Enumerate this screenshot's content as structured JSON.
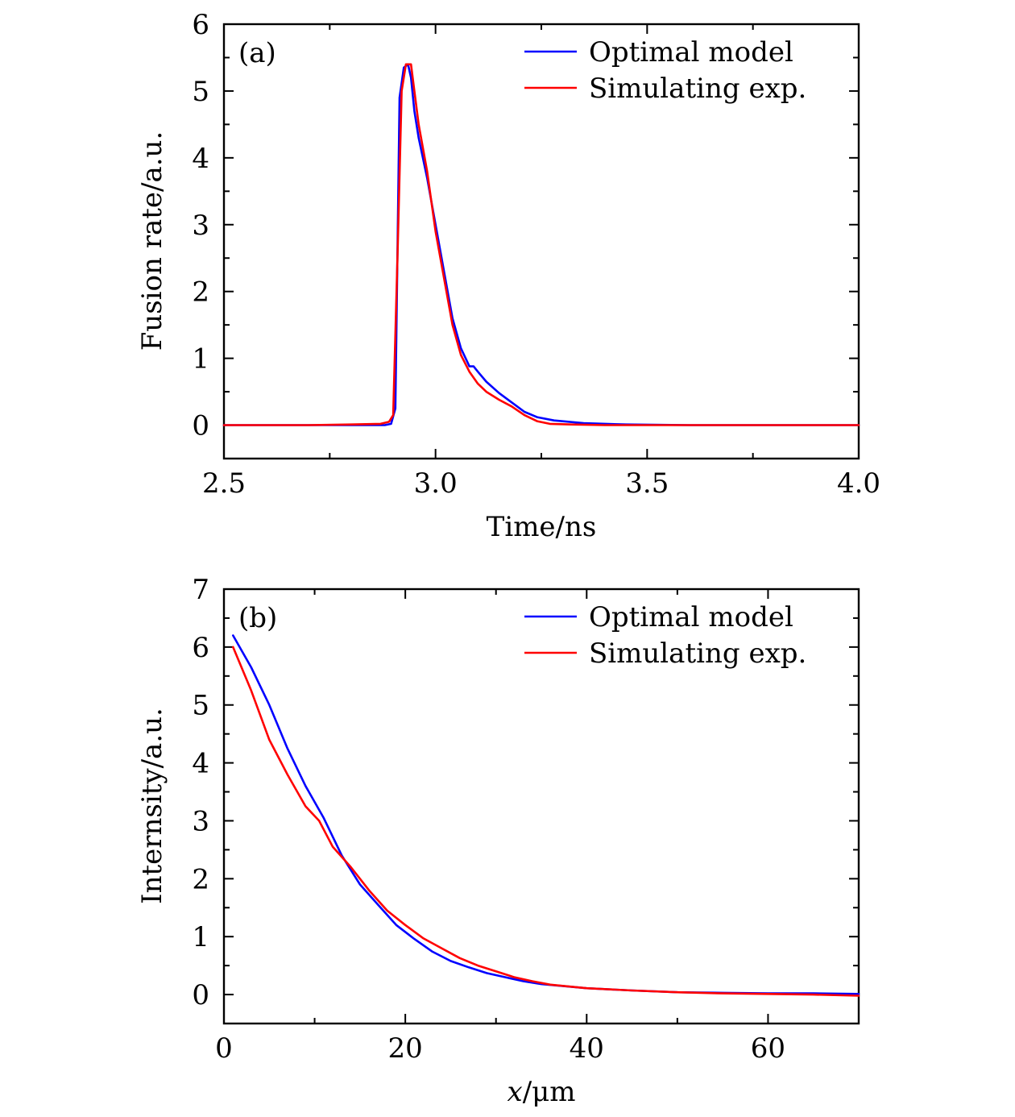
{
  "chart_data": [
    {
      "type": "line",
      "panel_label": "(a)",
      "xlabel": "Time/ns",
      "ylabel": "Fusion rate/a.u.",
      "xlim": [
        2.5,
        4.0
      ],
      "ylim": [
        -0.5,
        6
      ],
      "xticks": [
        2.5,
        3.0,
        3.5,
        4.0
      ],
      "xtick_labels": [
        "2.5",
        "3.0",
        "3.5",
        "4.0"
      ],
      "xminor": [
        2.75,
        3.25,
        3.75
      ],
      "yticks": [
        0,
        1,
        2,
        3,
        4,
        5,
        6
      ],
      "ytick_labels": [
        "0",
        "1",
        "2",
        "3",
        "4",
        "5",
        "6"
      ],
      "yminor": [
        0.5,
        1.5,
        2.5,
        3.5,
        4.5,
        5.5
      ],
      "legend_position": "top-right",
      "series": [
        {
          "name": "Optimal model",
          "color": "#0000ff",
          "x": [
            2.5,
            2.7,
            2.8,
            2.88,
            2.895,
            2.905,
            2.915,
            2.925,
            2.935,
            2.942,
            2.95,
            2.96,
            2.98,
            3.0,
            3.02,
            3.04,
            3.06,
            3.08,
            3.09,
            3.1,
            3.12,
            3.15,
            3.18,
            3.21,
            3.24,
            3.28,
            3.35,
            3.45,
            3.6,
            4.0
          ],
          "values": [
            0,
            0,
            0,
            0,
            0.02,
            0.25,
            4.9,
            5.35,
            5.4,
            5.2,
            4.7,
            4.3,
            3.7,
            3.0,
            2.3,
            1.6,
            1.15,
            0.88,
            0.88,
            0.8,
            0.65,
            0.48,
            0.34,
            0.2,
            0.12,
            0.07,
            0.03,
            0.01,
            0,
            0
          ]
        },
        {
          "name": "Simulating exp.",
          "color": "#ff0000",
          "x": [
            2.5,
            2.7,
            2.8,
            2.87,
            2.89,
            2.9,
            2.91,
            2.92,
            2.93,
            2.942,
            2.95,
            2.96,
            2.98,
            3.0,
            3.02,
            3.04,
            3.06,
            3.08,
            3.1,
            3.12,
            3.15,
            3.18,
            3.21,
            3.24,
            3.27,
            3.32,
            3.4,
            3.6,
            4.0
          ],
          "values": [
            0,
            0,
            0.01,
            0.02,
            0.05,
            0.15,
            2.5,
            5.0,
            5.4,
            5.4,
            5.0,
            4.5,
            3.8,
            2.9,
            2.2,
            1.5,
            1.05,
            0.8,
            0.62,
            0.5,
            0.38,
            0.28,
            0.15,
            0.06,
            0.02,
            0.01,
            0,
            0,
            0
          ]
        }
      ]
    },
    {
      "type": "line",
      "panel_label": "(b)",
      "xlabel_var": "x",
      "xlabel_unit": "/μm",
      "ylabel": "Internsity/a.u.",
      "xlim": [
        0,
        70
      ],
      "ylim": [
        -0.5,
        7
      ],
      "xticks": [
        0,
        20,
        40,
        60
      ],
      "xtick_labels": [
        "0",
        "20",
        "40",
        "60"
      ],
      "xminor": [
        10,
        30,
        50,
        70
      ],
      "yticks": [
        0,
        1,
        2,
        3,
        4,
        5,
        6,
        7
      ],
      "ytick_labels": [
        "0",
        "1",
        "2",
        "3",
        "4",
        "5",
        "6",
        "7"
      ],
      "yminor": [
        0.5,
        1.5,
        2.5,
        3.5,
        4.5,
        5.5,
        6.5
      ],
      "legend_position": "top-right",
      "series": [
        {
          "name": "Optimal model",
          "color": "#0000ff",
          "x": [
            1,
            3,
            5,
            7,
            9,
            11,
            13,
            15,
            17,
            19,
            21,
            23,
            25,
            27,
            29,
            31,
            33,
            35,
            40,
            45,
            50,
            55,
            60,
            65,
            70
          ],
          "values": [
            6.2,
            5.65,
            5.0,
            4.25,
            3.6,
            3.05,
            2.4,
            1.9,
            1.55,
            1.2,
            0.96,
            0.74,
            0.58,
            0.47,
            0.37,
            0.3,
            0.23,
            0.18,
            0.11,
            0.07,
            0.04,
            0.03,
            0.02,
            0.02,
            0.01
          ]
        },
        {
          "name": "Simulating exp.",
          "color": "#ff0000",
          "x": [
            1,
            3,
            5,
            7,
            9,
            10.5,
            12,
            14,
            16,
            18,
            20,
            22,
            24,
            26,
            28,
            30,
            32,
            34,
            36,
            40,
            45,
            50,
            55,
            60,
            65,
            70
          ],
          "values": [
            6.0,
            5.25,
            4.4,
            3.8,
            3.25,
            3.0,
            2.55,
            2.2,
            1.8,
            1.45,
            1.2,
            0.97,
            0.8,
            0.63,
            0.5,
            0.4,
            0.3,
            0.23,
            0.17,
            0.11,
            0.07,
            0.04,
            0.02,
            0.01,
            0.0,
            -0.02
          ]
        }
      ]
    }
  ]
}
